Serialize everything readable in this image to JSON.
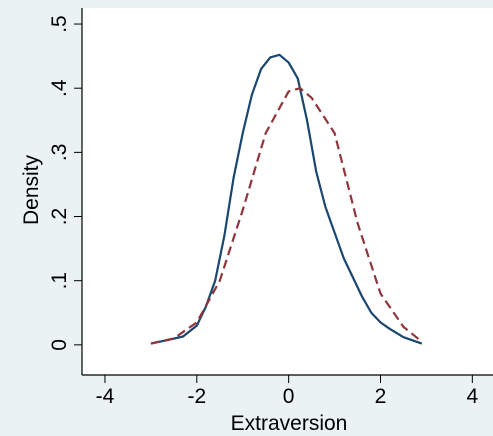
{
  "chart_data": {
    "type": "line",
    "x_label": "Extraversion",
    "y_label": "Density",
    "xlim": [
      -4.5,
      4.45
    ],
    "ylim": [
      -0.047,
      0.525
    ],
    "xticks": [
      -4,
      -2,
      0,
      2,
      4
    ],
    "yticks": [
      0,
      {
        "value": 0.1,
        "label": ".1"
      },
      {
        "value": 0.2,
        "label": ".2"
      },
      {
        "value": 0.3,
        "label": ".3"
      },
      {
        "value": 0.4,
        "label": ".4"
      },
      {
        "value": 0.5,
        "label": ".5"
      }
    ],
    "series": [
      {
        "color": "#1a476f",
        "line_style": "solid",
        "x": [
          -3,
          -2.6,
          -2.3,
          -2,
          -1.8,
          -1.6,
          -1.4,
          -1.2,
          -1,
          -0.8,
          -0.6,
          -0.4,
          -0.2,
          0,
          0.2,
          0.4,
          0.6,
          0.8,
          1,
          1.2,
          1.4,
          1.6,
          1.8,
          2,
          2.2,
          2.5,
          2.9
        ],
        "values": [
          0.002,
          0.008,
          0.013,
          0.03,
          0.06,
          0.1,
          0.17,
          0.26,
          0.33,
          0.39,
          0.43,
          0.448,
          0.452,
          0.44,
          0.415,
          0.35,
          0.27,
          0.215,
          0.175,
          0.135,
          0.105,
          0.075,
          0.05,
          0.035,
          0.025,
          0.012,
          0.002
        ]
      },
      {
        "color": "#90353b",
        "line_style": "dashed",
        "x": [
          -3,
          -2.5,
          -2,
          -1.5,
          -1,
          -0.5,
          0,
          0.25,
          0.5,
          1,
          1.5,
          2,
          2.5,
          2.9
        ],
        "values": [
          0.002,
          0.01,
          0.035,
          0.1,
          0.21,
          0.33,
          0.395,
          0.4,
          0.385,
          0.33,
          0.19,
          0.08,
          0.028,
          0.005
        ]
      }
    ]
  }
}
